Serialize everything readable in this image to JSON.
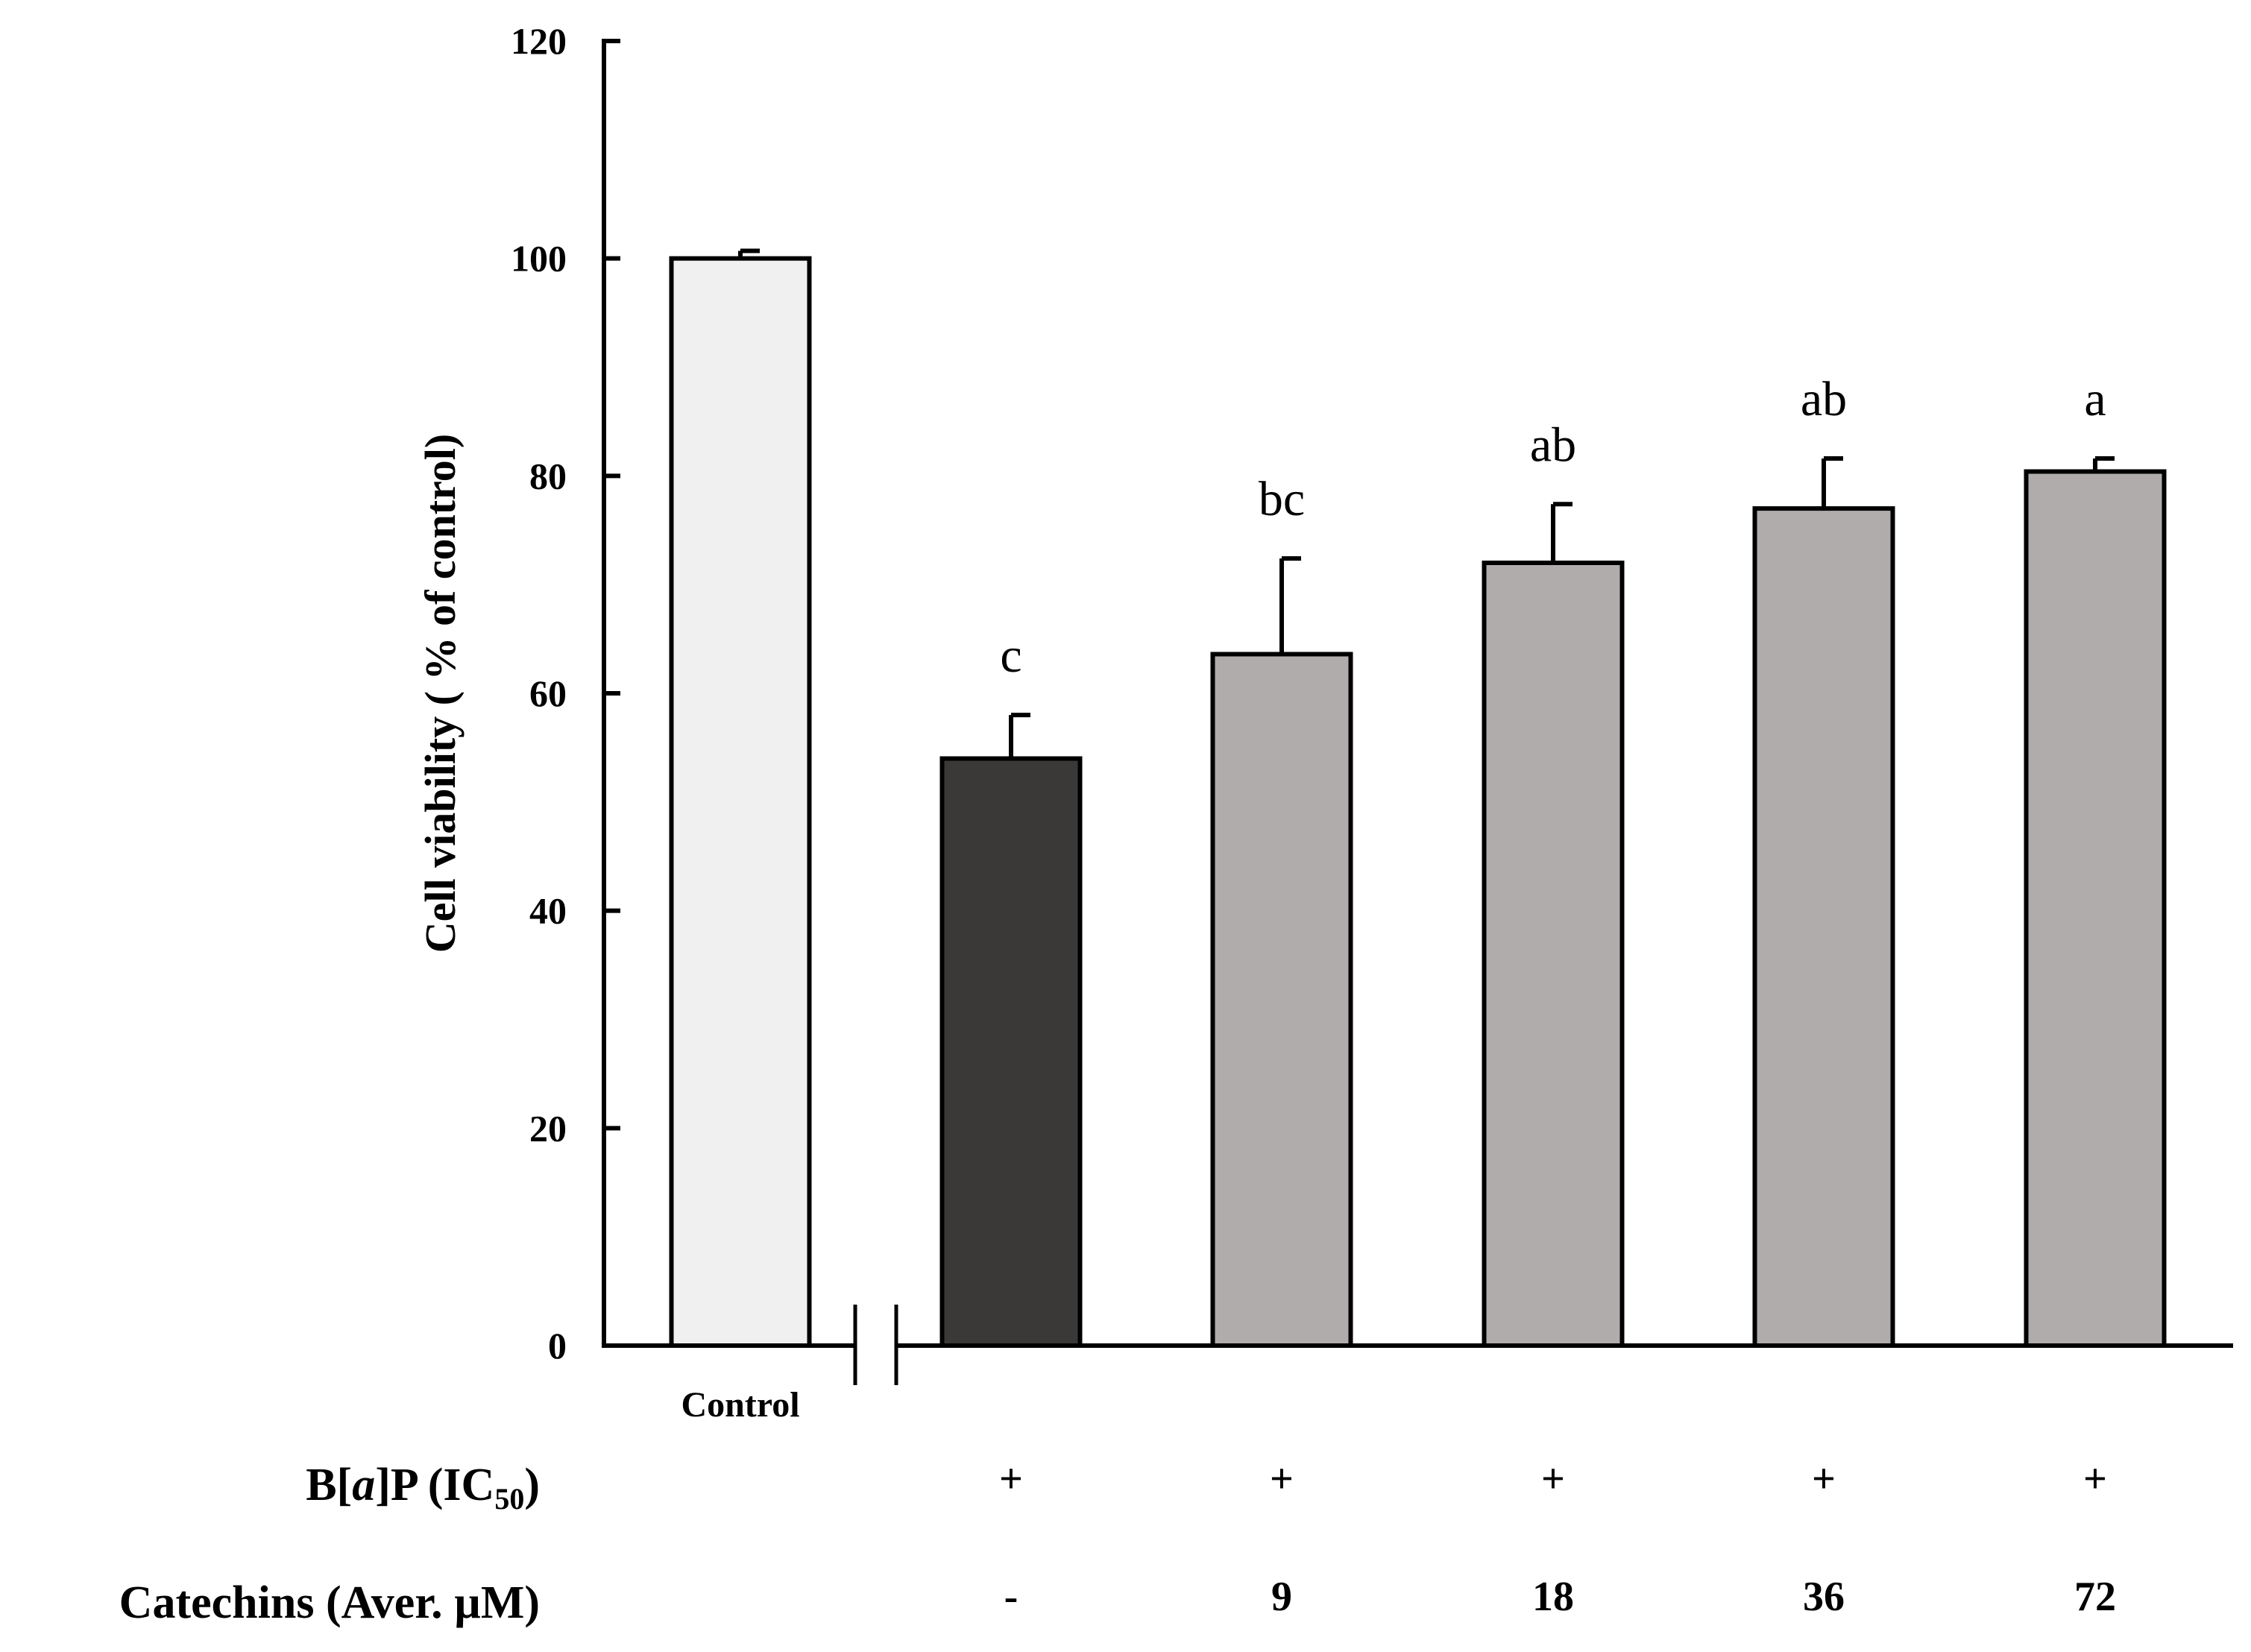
{
  "chart_data": {
    "type": "bar",
    "title": "",
    "xlabel": "",
    "ylabel": "Cell viability ( % of control)",
    "ylim": [
      0,
      120
    ],
    "yticks": [
      0,
      20,
      40,
      60,
      80,
      100,
      120
    ],
    "axis_break": true,
    "categories": [
      "Control",
      "",
      "",
      "",
      "",
      ""
    ],
    "values": [
      100.0,
      54.0,
      63.6,
      72.0,
      77.0,
      80.4
    ],
    "errors": [
      0.7,
      4.0,
      8.8,
      5.4,
      4.6,
      1.2
    ],
    "significance": [
      "",
      "c",
      "bc",
      "ab",
      "ab",
      "a"
    ],
    "bar_colors": [
      "#f0f0f0",
      "#3a3938",
      "#b0acab",
      "#b0acab",
      "#b0acab",
      "#b0acab"
    ],
    "rows": [
      {
        "label_prefix": "B[",
        "label_italic": "a",
        "label_mid": "]P (IC",
        "label_sub": "50",
        "label_suffix": ")",
        "values": [
          "",
          "+",
          "+",
          "+",
          "+",
          "+"
        ]
      },
      {
        "label": "Catechins (Aver. µM)",
        "values": [
          "",
          "-",
          "9",
          "18",
          "36",
          "72"
        ]
      }
    ]
  }
}
